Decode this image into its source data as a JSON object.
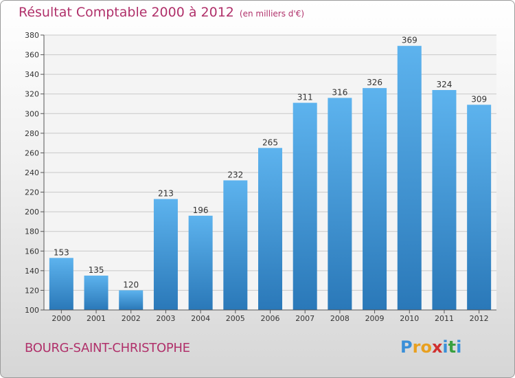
{
  "title": {
    "main": "Résultat Comptable 2000 à 2012",
    "unit": "(en milliers d'€)"
  },
  "location": "BOURG-SAINT-CHRISTOPHE",
  "logo": {
    "letters": [
      "P",
      "r",
      "o",
      "x",
      "i",
      "t",
      "i"
    ],
    "colors": [
      "#3a8fd8",
      "#e8a020",
      "#e8a020",
      "#d03030",
      "#3a8fd8",
      "#3aa040",
      "#3a8fd8"
    ]
  },
  "colors": {
    "title": "#b0306a",
    "bar_top": "#5db3ee",
    "bar_bottom": "#2a78b8",
    "plot_bg": "#f4f4f4",
    "grid": "#c8c8c8"
  },
  "chart_data": {
    "type": "bar",
    "categories": [
      "2000",
      "2001",
      "2002",
      "2003",
      "2004",
      "2005",
      "2006",
      "2007",
      "2008",
      "2009",
      "2010",
      "2011",
      "2012"
    ],
    "values": [
      153,
      135,
      120,
      213,
      196,
      232,
      265,
      311,
      316,
      326,
      369,
      324,
      309
    ],
    "ylim": [
      100,
      380
    ],
    "yticks": [
      100,
      120,
      140,
      160,
      180,
      200,
      220,
      240,
      260,
      280,
      300,
      320,
      340,
      360,
      380
    ],
    "grid": true,
    "data_labels": true
  }
}
